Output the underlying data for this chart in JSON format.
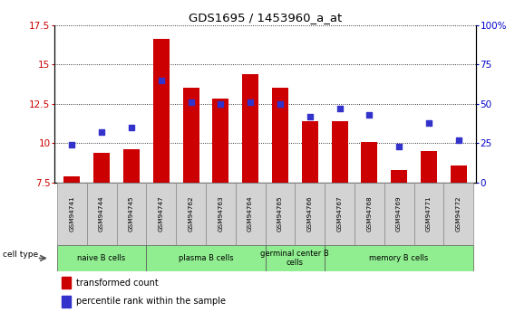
{
  "title": "GDS1695 / 1453960_a_at",
  "samples": [
    "GSM94741",
    "GSM94744",
    "GSM94745",
    "GSM94747",
    "GSM94762",
    "GSM94763",
    "GSM94764",
    "GSM94765",
    "GSM94766",
    "GSM94767",
    "GSM94768",
    "GSM94769",
    "GSM94771",
    "GSM94772"
  ],
  "transformed_count": [
    7.9,
    9.4,
    9.6,
    16.6,
    13.5,
    12.8,
    14.4,
    13.5,
    11.4,
    11.4,
    10.1,
    8.3,
    9.5,
    8.6
  ],
  "percentile_rank": [
    24,
    32,
    35,
    65,
    51,
    50,
    51,
    50,
    42,
    47,
    43,
    23,
    38,
    27
  ],
  "ylim_left": [
    7.5,
    17.5
  ],
  "ylim_right": [
    0,
    100
  ],
  "yticks_left": [
    7.5,
    10.0,
    12.5,
    15.0,
    17.5
  ],
  "ytick_labels_left": [
    "7.5",
    "10",
    "12.5",
    "15",
    "17.5"
  ],
  "yticks_right": [
    0,
    25,
    50,
    75,
    100
  ],
  "ytick_labels_right": [
    "0",
    "25",
    "50",
    "75",
    "100%"
  ],
  "bar_color": "#CC0000",
  "dot_color": "#3333CC",
  "cell_group_boundaries": [
    0,
    3,
    7,
    9,
    14
  ],
  "cell_group_labels": [
    "naive B cells",
    "plasma B cells",
    "germinal center B\ncells",
    "memory B cells"
  ],
  "legend_bar_label": "transformed count",
  "legend_dot_label": "percentile rank within the sample",
  "cell_type_label": "cell type",
  "background_color": "#FFFFFF",
  "gray_bg": "#D3D3D3",
  "green_bg": "#90EE90",
  "bar_bottom": 7.5,
  "bar_width": 0.55
}
